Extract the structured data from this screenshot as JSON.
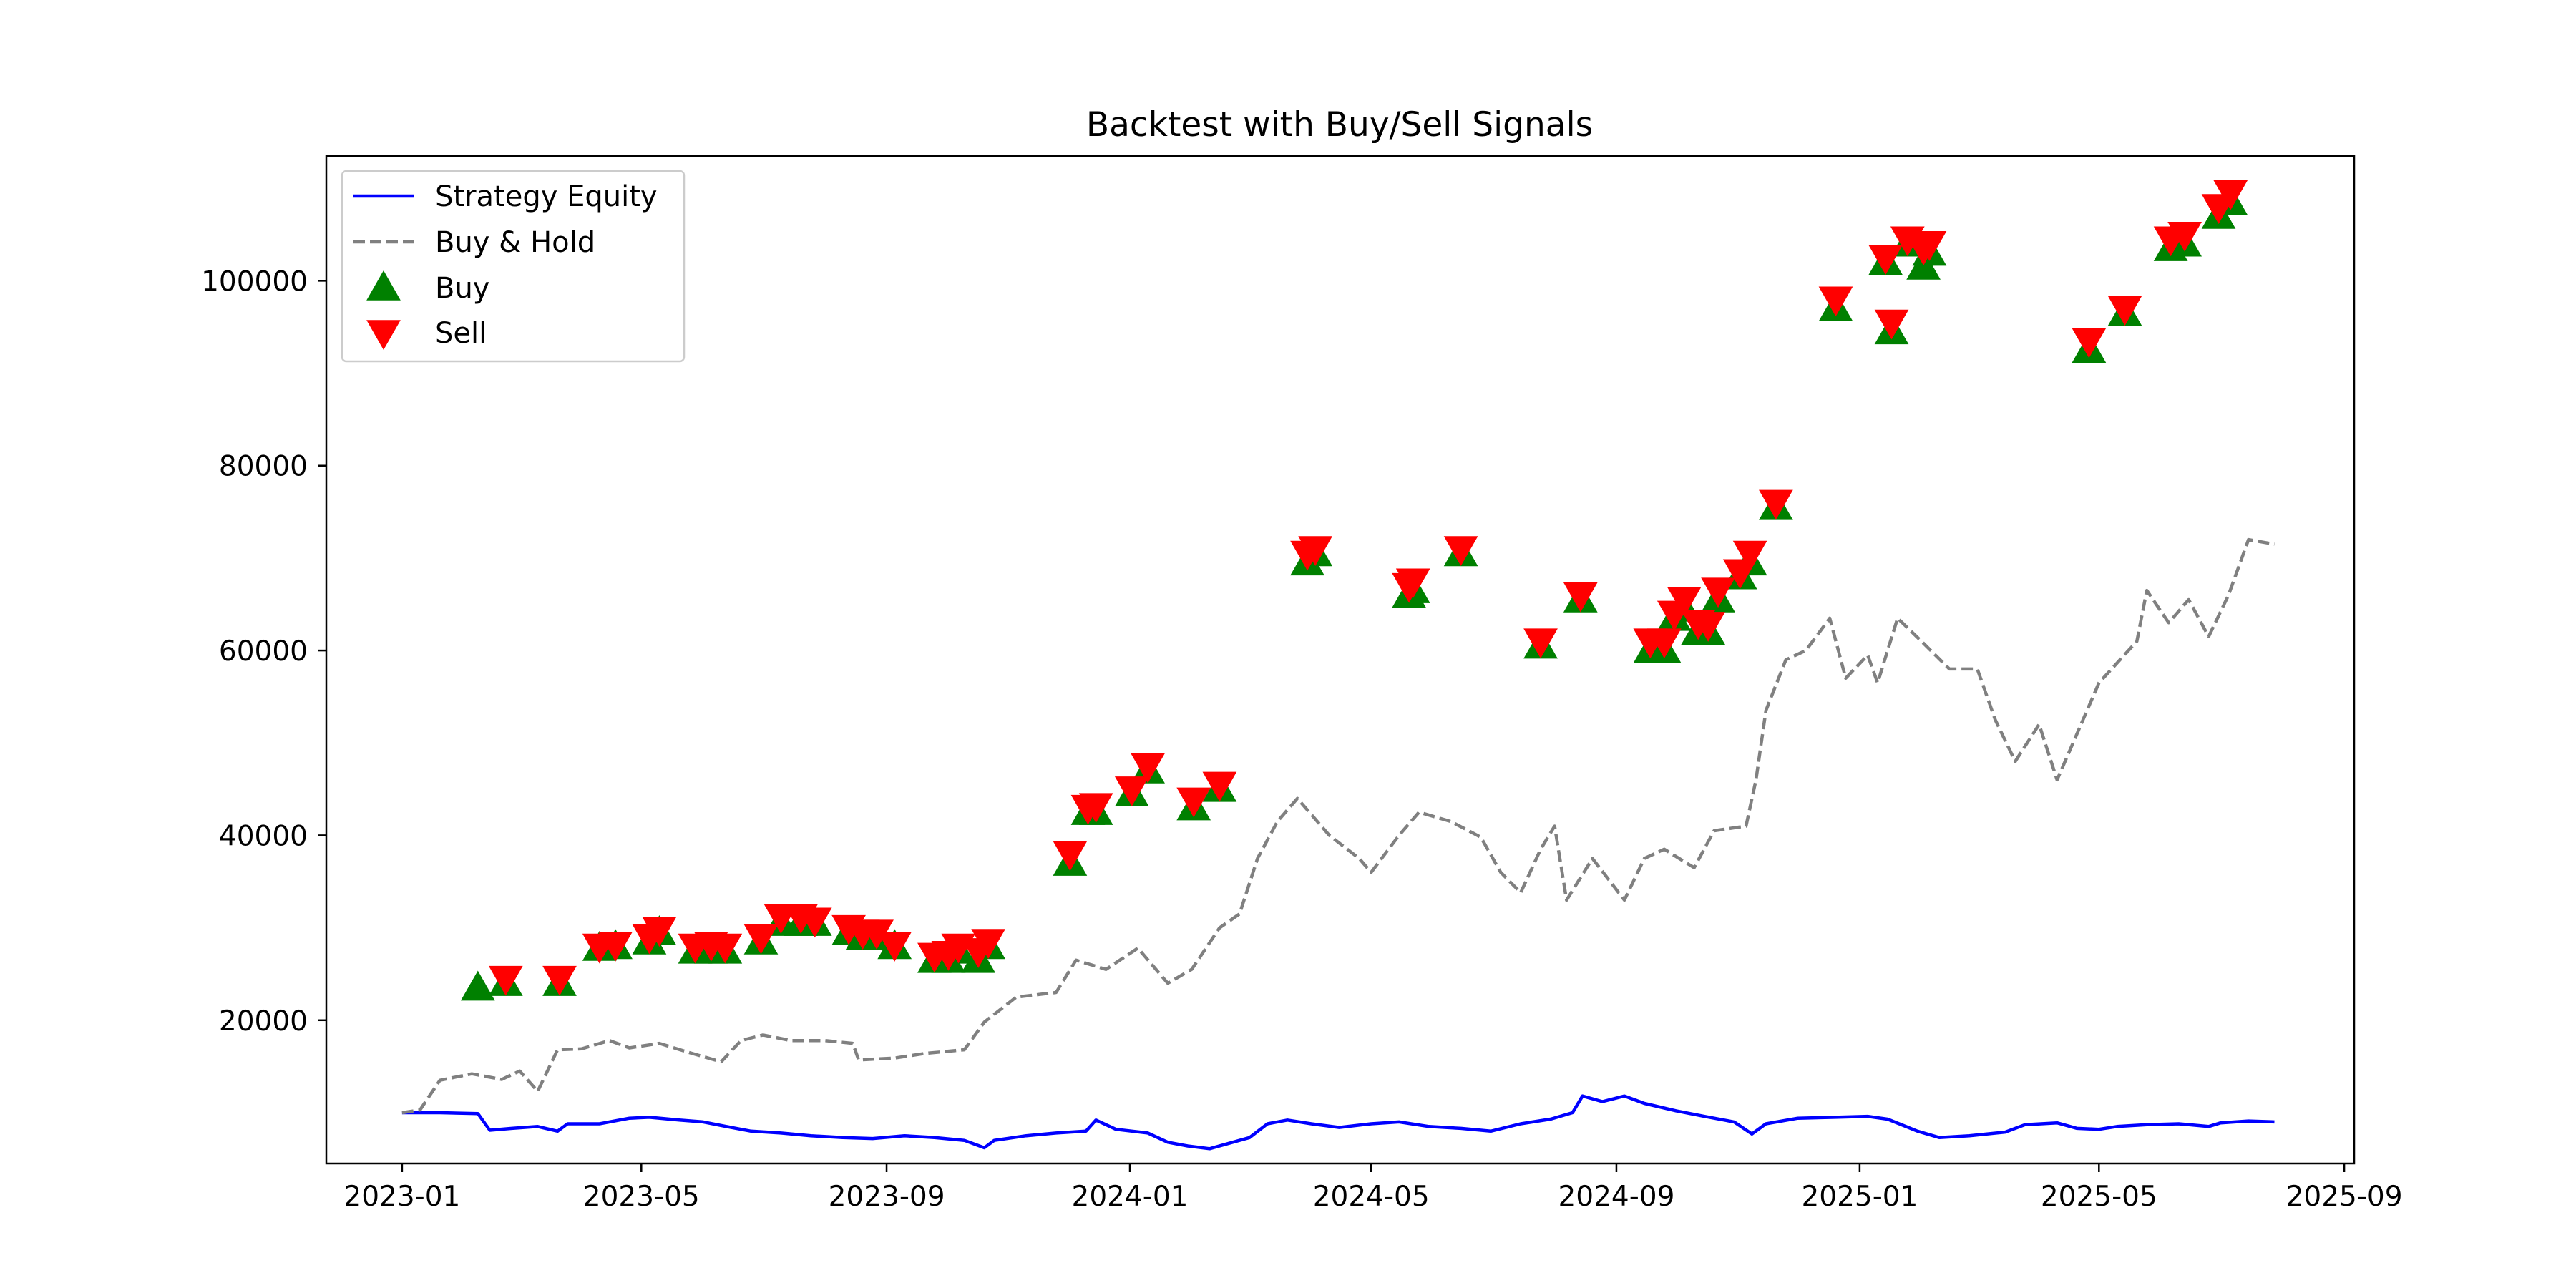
{
  "chart_data": {
    "type": "line",
    "title": "Backtest with Buy/Sell Signals",
    "xlabel": "",
    "ylabel": "",
    "x_axis": "date",
    "xlim": [
      "2022-11-24",
      "2025-09-06"
    ],
    "ylim": [
      4500,
      113500
    ],
    "x_ticks": [
      "2023-01",
      "2023-05",
      "2023-09",
      "2024-01",
      "2024-05",
      "2024-09",
      "2025-01",
      "2025-05",
      "2025-09"
    ],
    "y_ticks": [
      20000,
      40000,
      60000,
      80000,
      100000
    ],
    "grid": false,
    "legend": {
      "position": "top-left",
      "entries": [
        {
          "label": "Strategy Equity",
          "style": "solid-line",
          "color": "#0000ff"
        },
        {
          "label": "Buy & Hold",
          "style": "dashed-line",
          "color": "#808080"
        },
        {
          "label": "Buy",
          "style": "marker-triangle-up",
          "color": "#008000"
        },
        {
          "label": "Sell",
          "style": "marker-triangle-down",
          "color": "#ff0000"
        }
      ]
    },
    "series": [
      {
        "name": "Strategy Equity",
        "style": "solid",
        "color": "#0000ff",
        "points": [
          [
            "2023-01-01",
            10000
          ],
          [
            "2023-01-20",
            10000
          ],
          [
            "2023-02-08",
            9900
          ],
          [
            "2023-02-14",
            8100
          ],
          [
            "2023-02-25",
            8300
          ],
          [
            "2023-03-10",
            8500
          ],
          [
            "2023-03-20",
            8000
          ],
          [
            "2023-03-25",
            8800
          ],
          [
            "2023-04-10",
            8800
          ],
          [
            "2023-04-25",
            9400
          ],
          [
            "2023-05-05",
            9500
          ],
          [
            "2023-05-20",
            9200
          ],
          [
            "2023-06-01",
            9000
          ],
          [
            "2023-06-15",
            8400
          ],
          [
            "2023-06-25",
            8000
          ],
          [
            "2023-07-10",
            7800
          ],
          [
            "2023-07-25",
            7500
          ],
          [
            "2023-08-10",
            7300
          ],
          [
            "2023-08-25",
            7200
          ],
          [
            "2023-09-10",
            7500
          ],
          [
            "2023-09-25",
            7300
          ],
          [
            "2023-10-10",
            7000
          ],
          [
            "2023-10-20",
            6200
          ],
          [
            "2023-10-25",
            7000
          ],
          [
            "2023-11-10",
            7500
          ],
          [
            "2023-11-25",
            7800
          ],
          [
            "2023-12-10",
            8000
          ],
          [
            "2023-12-15",
            9200
          ],
          [
            "2023-12-25",
            8200
          ],
          [
            "2024-01-10",
            7800
          ],
          [
            "2024-01-20",
            6800
          ],
          [
            "2024-01-30",
            6400
          ],
          [
            "2024-02-10",
            6100
          ],
          [
            "2024-02-20",
            6700
          ],
          [
            "2024-03-01",
            7300
          ],
          [
            "2024-03-10",
            8800
          ],
          [
            "2024-03-20",
            9200
          ],
          [
            "2024-04-01",
            8800
          ],
          [
            "2024-04-15",
            8400
          ],
          [
            "2024-05-01",
            8800
          ],
          [
            "2024-05-15",
            9000
          ],
          [
            "2024-05-30",
            8500
          ],
          [
            "2024-06-15",
            8300
          ],
          [
            "2024-06-30",
            8000
          ],
          [
            "2024-07-15",
            8800
          ],
          [
            "2024-07-30",
            9300
          ],
          [
            "2024-08-10",
            10000
          ],
          [
            "2024-08-15",
            11800
          ],
          [
            "2024-08-25",
            11200
          ],
          [
            "2024-09-05",
            11800
          ],
          [
            "2024-09-15",
            11000
          ],
          [
            "2024-10-01",
            10200
          ],
          [
            "2024-10-15",
            9600
          ],
          [
            "2024-10-30",
            9000
          ],
          [
            "2024-11-08",
            7700
          ],
          [
            "2024-11-15",
            8800
          ],
          [
            "2024-12-01",
            9400
          ],
          [
            "2024-12-20",
            9500
          ],
          [
            "2025-01-05",
            9600
          ],
          [
            "2025-01-15",
            9300
          ],
          [
            "2025-01-30",
            8000
          ],
          [
            "2025-02-10",
            7300
          ],
          [
            "2025-02-25",
            7500
          ],
          [
            "2025-03-15",
            7900
          ],
          [
            "2025-03-25",
            8700
          ],
          [
            "2025-04-10",
            8900
          ],
          [
            "2025-04-20",
            8300
          ],
          [
            "2025-05-01",
            8200
          ],
          [
            "2025-05-10",
            8500
          ],
          [
            "2025-05-25",
            8700
          ],
          [
            "2025-06-10",
            8800
          ],
          [
            "2025-06-25",
            8500
          ],
          [
            "2025-07-01",
            8900
          ],
          [
            "2025-07-15",
            9100
          ],
          [
            "2025-07-28",
            9000
          ]
        ]
      },
      {
        "name": "Buy & Hold",
        "style": "dashed",
        "color": "#808080",
        "points": [
          [
            "2023-01-01",
            10000
          ],
          [
            "2023-01-10",
            10300
          ],
          [
            "2023-01-20",
            13500
          ],
          [
            "2023-02-05",
            14200
          ],
          [
            "2023-02-20",
            13600
          ],
          [
            "2023-03-01",
            14500
          ],
          [
            "2023-03-10",
            12300
          ],
          [
            "2023-03-20",
            16800
          ],
          [
            "2023-04-01",
            16900
          ],
          [
            "2023-04-15",
            17800
          ],
          [
            "2023-04-25",
            17000
          ],
          [
            "2023-05-10",
            17500
          ],
          [
            "2023-05-25",
            16500
          ],
          [
            "2023-06-10",
            15500
          ],
          [
            "2023-06-20",
            17800
          ],
          [
            "2023-07-01",
            18400
          ],
          [
            "2023-07-15",
            17800
          ],
          [
            "2023-08-01",
            17800
          ],
          [
            "2023-08-15",
            17500
          ],
          [
            "2023-08-18",
            15700
          ],
          [
            "2023-09-05",
            15900
          ],
          [
            "2023-09-20",
            16400
          ],
          [
            "2023-10-10",
            16800
          ],
          [
            "2023-10-20",
            19800
          ],
          [
            "2023-11-05",
            22500
          ],
          [
            "2023-11-25",
            23000
          ],
          [
            "2023-12-05",
            26500
          ],
          [
            "2023-12-20",
            25500
          ],
          [
            "2024-01-05",
            27800
          ],
          [
            "2024-01-20",
            24000
          ],
          [
            "2024-02-01",
            25500
          ],
          [
            "2024-02-15",
            30000
          ],
          [
            "2024-02-25",
            31500
          ],
          [
            "2024-03-05",
            37500
          ],
          [
            "2024-03-15",
            41500
          ],
          [
            "2024-03-25",
            44000
          ],
          [
            "2024-04-10",
            40000
          ],
          [
            "2024-04-25",
            37500
          ],
          [
            "2024-05-01",
            36000
          ],
          [
            "2024-05-15",
            40000
          ],
          [
            "2024-05-25",
            42500
          ],
          [
            "2024-06-10",
            41500
          ],
          [
            "2024-06-25",
            39800
          ],
          [
            "2024-07-05",
            36000
          ],
          [
            "2024-07-15",
            33800
          ],
          [
            "2024-07-25",
            38500
          ],
          [
            "2024-08-01",
            41000
          ],
          [
            "2024-08-07",
            33000
          ],
          [
            "2024-08-20",
            37500
          ],
          [
            "2024-09-05",
            33000
          ],
          [
            "2024-09-15",
            37500
          ],
          [
            "2024-09-25",
            38500
          ],
          [
            "2024-10-10",
            36500
          ],
          [
            "2024-10-20",
            40500
          ],
          [
            "2024-11-05",
            41000
          ],
          [
            "2024-11-10",
            46000
          ],
          [
            "2024-11-15",
            53500
          ],
          [
            "2024-11-25",
            59000
          ],
          [
            "2024-12-05",
            60000
          ],
          [
            "2024-12-17",
            63500
          ],
          [
            "2024-12-25",
            57000
          ],
          [
            "2025-01-05",
            59500
          ],
          [
            "2025-01-10",
            56500
          ],
          [
            "2025-01-20",
            63500
          ],
          [
            "2025-02-01",
            61000
          ],
          [
            "2025-02-15",
            58000
          ],
          [
            "2025-03-01",
            58000
          ],
          [
            "2025-03-10",
            52500
          ],
          [
            "2025-03-20",
            48000
          ],
          [
            "2025-04-01",
            52000
          ],
          [
            "2025-04-10",
            46000
          ],
          [
            "2025-04-20",
            51000
          ],
          [
            "2025-05-01",
            56500
          ],
          [
            "2025-05-20",
            61000
          ],
          [
            "2025-05-25",
            66500
          ],
          [
            "2025-06-05",
            63000
          ],
          [
            "2025-06-15",
            65500
          ],
          [
            "2025-06-25",
            61500
          ],
          [
            "2025-07-05",
            66000
          ],
          [
            "2025-07-15",
            72000
          ],
          [
            "2025-07-28",
            71500
          ]
        ]
      }
    ],
    "buy_signals": [
      [
        "2023-02-08",
        23500
      ],
      [
        "2023-02-22",
        24000
      ],
      [
        "2023-03-21",
        24000
      ],
      [
        "2023-04-10",
        27800
      ],
      [
        "2023-04-18",
        28000
      ],
      [
        "2023-05-05",
        28500
      ],
      [
        "2023-05-10",
        29500
      ],
      [
        "2023-05-28",
        27500
      ],
      [
        "2023-06-05",
        27500
      ],
      [
        "2023-06-12",
        27500
      ],
      [
        "2023-06-30",
        28500
      ],
      [
        "2023-07-10",
        30500
      ],
      [
        "2023-07-20",
        30500
      ],
      [
        "2023-07-27",
        30500
      ],
      [
        "2023-08-13",
        29500
      ],
      [
        "2023-08-20",
        29000
      ],
      [
        "2023-08-27",
        29000
      ],
      [
        "2023-09-05",
        28000
      ],
      [
        "2023-09-25",
        26500
      ],
      [
        "2023-10-02",
        26500
      ],
      [
        "2023-10-07",
        27500
      ],
      [
        "2023-10-17",
        26500
      ],
      [
        "2023-10-22",
        28000
      ],
      [
        "2023-12-02",
        37000
      ],
      [
        "2023-12-11",
        42500
      ],
      [
        "2023-12-15",
        42500
      ],
      [
        "2024-01-02",
        44500
      ],
      [
        "2024-01-10",
        47000
      ],
      [
        "2024-02-02",
        43000
      ],
      [
        "2024-02-15",
        45000
      ],
      [
        "2024-03-30",
        69500
      ],
      [
        "2024-04-03",
        70500
      ],
      [
        "2024-05-20",
        66000
      ],
      [
        "2024-05-22",
        66500
      ],
      [
        "2024-06-15",
        70500
      ],
      [
        "2024-07-25",
        60500
      ],
      [
        "2024-08-14",
        65500
      ],
      [
        "2024-09-18",
        60000
      ],
      [
        "2024-09-25",
        60000
      ],
      [
        "2024-09-30",
        63500
      ],
      [
        "2024-10-05",
        64500
      ],
      [
        "2024-10-12",
        62000
      ],
      [
        "2024-10-17",
        62000
      ],
      [
        "2024-10-22",
        65500
      ],
      [
        "2024-11-02",
        68000
      ],
      [
        "2024-11-07",
        69500
      ],
      [
        "2024-11-20",
        75500
      ],
      [
        "2024-12-20",
        97000
      ],
      [
        "2025-01-14",
        102000
      ],
      [
        "2025-01-17",
        94500
      ],
      [
        "2025-01-25",
        104000
      ],
      [
        "2025-02-02",
        101500
      ],
      [
        "2025-02-05",
        103000
      ],
      [
        "2025-04-26",
        92500
      ],
      [
        "2025-05-14",
        96500
      ],
      [
        "2025-06-06",
        103500
      ],
      [
        "2025-06-13",
        104000
      ],
      [
        "2025-06-30",
        107000
      ],
      [
        "2025-07-06",
        108500
      ]
    ],
    "sell_signals": [
      [
        "2023-02-22",
        24500
      ],
      [
        "2023-03-21",
        24500
      ],
      [
        "2023-04-10",
        28000
      ],
      [
        "2023-04-18",
        28200
      ],
      [
        "2023-05-05",
        29000
      ],
      [
        "2023-05-10",
        29800
      ],
      [
        "2023-05-28",
        28000
      ],
      [
        "2023-06-05",
        28200
      ],
      [
        "2023-06-12",
        28000
      ],
      [
        "2023-06-30",
        29000
      ],
      [
        "2023-07-10",
        31200
      ],
      [
        "2023-07-20",
        31200
      ],
      [
        "2023-07-27",
        30800
      ],
      [
        "2023-08-13",
        30000
      ],
      [
        "2023-08-20",
        29500
      ],
      [
        "2023-08-27",
        29500
      ],
      [
        "2023-09-05",
        28200
      ],
      [
        "2023-09-25",
        27000
      ],
      [
        "2023-10-02",
        27200
      ],
      [
        "2023-10-07",
        28000
      ],
      [
        "2023-10-17",
        27500
      ],
      [
        "2023-10-22",
        28500
      ],
      [
        "2023-12-02",
        38000
      ],
      [
        "2023-12-11",
        43000
      ],
      [
        "2023-12-15",
        43200
      ],
      [
        "2024-01-02",
        45000
      ],
      [
        "2024-01-10",
        47500
      ],
      [
        "2024-02-02",
        43800
      ],
      [
        "2024-02-15",
        45500
      ],
      [
        "2024-03-30",
        70500
      ],
      [
        "2024-04-03",
        71000
      ],
      [
        "2024-05-20",
        67000
      ],
      [
        "2024-05-22",
        67500
      ],
      [
        "2024-06-15",
        71000
      ],
      [
        "2024-07-25",
        61000
      ],
      [
        "2024-08-14",
        66000
      ],
      [
        "2024-09-18",
        61000
      ],
      [
        "2024-09-25",
        61000
      ],
      [
        "2024-09-30",
        64000
      ],
      [
        "2024-10-05",
        65500
      ],
      [
        "2024-10-12",
        63000
      ],
      [
        "2024-10-17",
        62800
      ],
      [
        "2024-10-22",
        66500
      ],
      [
        "2024-11-02",
        68500
      ],
      [
        "2024-11-07",
        70500
      ],
      [
        "2024-11-20",
        76000
      ],
      [
        "2024-12-20",
        98000
      ],
      [
        "2025-01-14",
        102500
      ],
      [
        "2025-01-17",
        95500
      ],
      [
        "2025-01-25",
        104500
      ],
      [
        "2025-02-02",
        103500
      ],
      [
        "2025-02-05",
        104000
      ],
      [
        "2025-04-26",
        93500
      ],
      [
        "2025-05-14",
        97000
      ],
      [
        "2025-06-06",
        104500
      ],
      [
        "2025-06-13",
        105000
      ],
      [
        "2025-06-30",
        108000
      ],
      [
        "2025-07-06",
        109500
      ]
    ]
  }
}
